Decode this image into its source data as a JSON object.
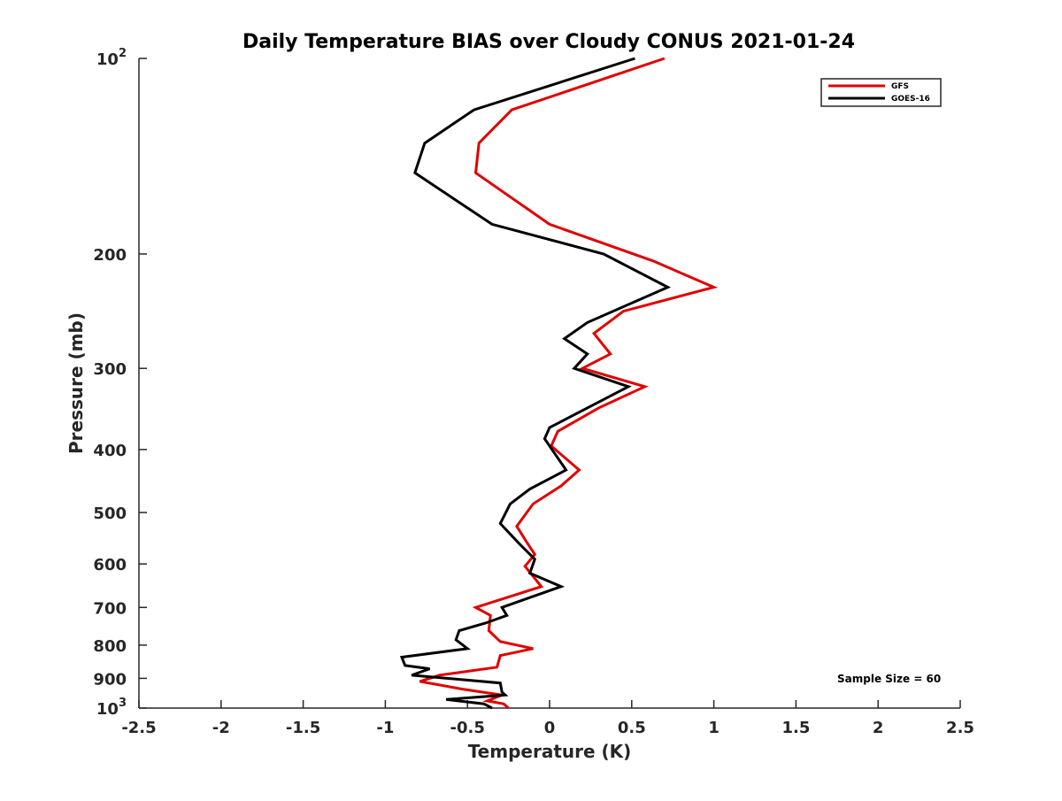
{
  "chart_data": {
    "type": "line",
    "title": "Daily Temperature BIAS over Cloudy CONUS 2021-01-24",
    "xlabel": "Temperature (K)",
    "ylabel": "Pressure (mb)",
    "xlim": [
      -2.5,
      2.5
    ],
    "ylim": [
      100,
      1000
    ],
    "y_scale": "log",
    "y_reversed": true,
    "grid": false,
    "legend_position": "top-right",
    "x_ticks": [
      {
        "value": -2.5,
        "label": "-2.5"
      },
      {
        "value": -2,
        "label": "-2"
      },
      {
        "value": -1.5,
        "label": "-1.5"
      },
      {
        "value": -1,
        "label": "-1"
      },
      {
        "value": -0.5,
        "label": "-0.5"
      },
      {
        "value": 0,
        "label": "0"
      },
      {
        "value": 0.5,
        "label": "0.5"
      },
      {
        "value": 1,
        "label": "1"
      },
      {
        "value": 1.5,
        "label": "1.5"
      },
      {
        "value": 2,
        "label": "2"
      },
      {
        "value": 2.5,
        "label": "2.5"
      }
    ],
    "y_ticks": [
      {
        "value": 100,
        "label": "10",
        "exponent": "2"
      },
      {
        "value": 200,
        "label": "200"
      },
      {
        "value": 300,
        "label": "300"
      },
      {
        "value": 400,
        "label": "400"
      },
      {
        "value": 500,
        "label": "500"
      },
      {
        "value": 600,
        "label": "600"
      },
      {
        "value": 700,
        "label": "700"
      },
      {
        "value": 800,
        "label": "800"
      },
      {
        "value": 900,
        "label": "900"
      },
      {
        "value": 1000,
        "label": "10",
        "exponent": "3"
      }
    ],
    "series": [
      {
        "name": "GFS",
        "color": "#e00000",
        "points": [
          {
            "x": 0.7,
            "p": 100
          },
          {
            "x": -0.23,
            "p": 120
          },
          {
            "x": -0.43,
            "p": 135
          },
          {
            "x": -0.45,
            "p": 150
          },
          {
            "x": 0.0,
            "p": 180
          },
          {
            "x": 0.63,
            "p": 205
          },
          {
            "x": 1.0,
            "p": 225
          },
          {
            "x": 0.45,
            "p": 245
          },
          {
            "x": 0.27,
            "p": 265
          },
          {
            "x": 0.37,
            "p": 285
          },
          {
            "x": 0.2,
            "p": 300
          },
          {
            "x": 0.58,
            "p": 320
          },
          {
            "x": 0.3,
            "p": 345
          },
          {
            "x": 0.05,
            "p": 375
          },
          {
            "x": 0.01,
            "p": 395
          },
          {
            "x": 0.18,
            "p": 430
          },
          {
            "x": 0.07,
            "p": 455
          },
          {
            "x": -0.1,
            "p": 485
          },
          {
            "x": -0.2,
            "p": 525
          },
          {
            "x": -0.14,
            "p": 555
          },
          {
            "x": -0.09,
            "p": 580
          },
          {
            "x": -0.15,
            "p": 605
          },
          {
            "x": -0.05,
            "p": 650
          },
          {
            "x": -0.45,
            "p": 700
          },
          {
            "x": -0.36,
            "p": 720
          },
          {
            "x": -0.37,
            "p": 760
          },
          {
            "x": -0.3,
            "p": 790
          },
          {
            "x": -0.1,
            "p": 810
          },
          {
            "x": -0.3,
            "p": 830
          },
          {
            "x": -0.32,
            "p": 865
          },
          {
            "x": -0.67,
            "p": 890
          },
          {
            "x": -0.79,
            "p": 910
          },
          {
            "x": -0.53,
            "p": 935
          },
          {
            "x": -0.29,
            "p": 955
          },
          {
            "x": -0.38,
            "p": 975
          },
          {
            "x": -0.28,
            "p": 985
          },
          {
            "x": -0.25,
            "p": 1000
          }
        ]
      },
      {
        "name": "GOES-16",
        "color": "#000000",
        "points": [
          {
            "x": 0.52,
            "p": 100
          },
          {
            "x": -0.46,
            "p": 120
          },
          {
            "x": -0.76,
            "p": 135
          },
          {
            "x": -0.82,
            "p": 150
          },
          {
            "x": -0.35,
            "p": 180
          },
          {
            "x": 0.33,
            "p": 200
          },
          {
            "x": 0.72,
            "p": 225
          },
          {
            "x": 0.23,
            "p": 255
          },
          {
            "x": 0.09,
            "p": 270
          },
          {
            "x": 0.23,
            "p": 285
          },
          {
            "x": 0.15,
            "p": 300
          },
          {
            "x": 0.48,
            "p": 320
          },
          {
            "x": 0.0,
            "p": 370
          },
          {
            "x": -0.03,
            "p": 385
          },
          {
            "x": 0.0,
            "p": 395
          },
          {
            "x": 0.1,
            "p": 430
          },
          {
            "x": -0.12,
            "p": 460
          },
          {
            "x": -0.24,
            "p": 485
          },
          {
            "x": -0.3,
            "p": 520
          },
          {
            "x": -0.18,
            "p": 560
          },
          {
            "x": -0.09,
            "p": 590
          },
          {
            "x": -0.12,
            "p": 620
          },
          {
            "x": 0.07,
            "p": 650
          },
          {
            "x": -0.15,
            "p": 680
          },
          {
            "x": -0.29,
            "p": 700
          },
          {
            "x": -0.26,
            "p": 720
          },
          {
            "x": -0.39,
            "p": 740
          },
          {
            "x": -0.55,
            "p": 760
          },
          {
            "x": -0.57,
            "p": 785
          },
          {
            "x": -0.5,
            "p": 810
          },
          {
            "x": -0.9,
            "p": 835
          },
          {
            "x": -0.88,
            "p": 860
          },
          {
            "x": -0.73,
            "p": 870
          },
          {
            "x": -0.84,
            "p": 890
          },
          {
            "x": -0.3,
            "p": 915
          },
          {
            "x": -0.29,
            "p": 945
          },
          {
            "x": -0.27,
            "p": 955
          },
          {
            "x": -0.63,
            "p": 970
          },
          {
            "x": -0.4,
            "p": 985
          },
          {
            "x": -0.35,
            "p": 1000
          }
        ]
      }
    ],
    "annotations": [
      {
        "text": "Sample Size = 60"
      }
    ]
  }
}
